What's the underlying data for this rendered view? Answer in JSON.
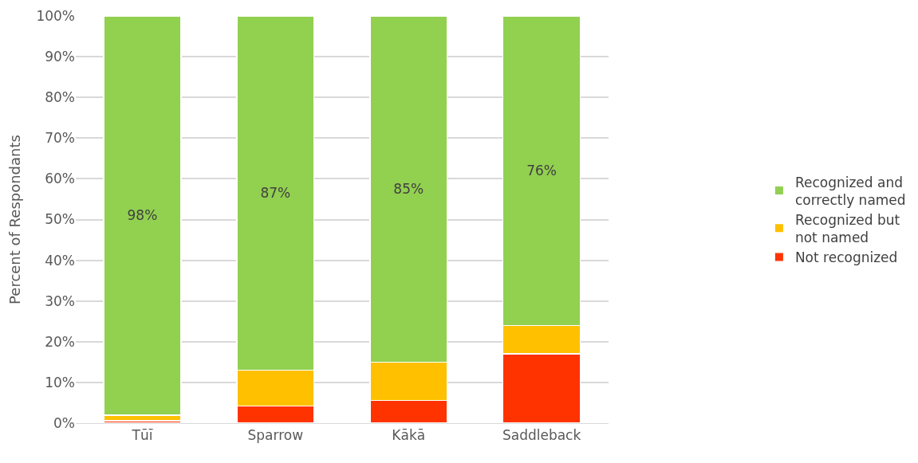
{
  "chart_data": {
    "type": "bar",
    "stacked": true,
    "ylabel": "Percent of Respondants",
    "categories": [
      "Tūī",
      "Sparrow",
      "Kākā",
      "Saddleback"
    ],
    "series": [
      {
        "name": "Not recognized",
        "color": "#ff3300",
        "values": [
          0.6,
          4.2,
          5.6,
          17
        ]
      },
      {
        "name": "Recognized but not named",
        "color": "#ffc000",
        "values": [
          1.4,
          8.8,
          9.4,
          7
        ]
      },
      {
        "name": "Recognized and correctly named",
        "color": "#92d050",
        "values": [
          98,
          87,
          85,
          76
        ],
        "value_labels": [
          "98%",
          "87%",
          "85%",
          "76%"
        ]
      }
    ],
    "ylim": [
      0,
      100
    ],
    "yticks": [
      {
        "value": 0,
        "label": "0%"
      },
      {
        "value": 10,
        "label": "10%"
      },
      {
        "value": 20,
        "label": "20%"
      },
      {
        "value": 30,
        "label": "30%"
      },
      {
        "value": 40,
        "label": "40%"
      },
      {
        "value": 50,
        "label": "50%"
      },
      {
        "value": 60,
        "label": "60%"
      },
      {
        "value": 70,
        "label": "70%"
      },
      {
        "value": 80,
        "label": "80%"
      },
      {
        "value": 90,
        "label": "90%"
      },
      {
        "value": 100,
        "label": "100%"
      }
    ],
    "grid": "y",
    "legend": "right"
  }
}
